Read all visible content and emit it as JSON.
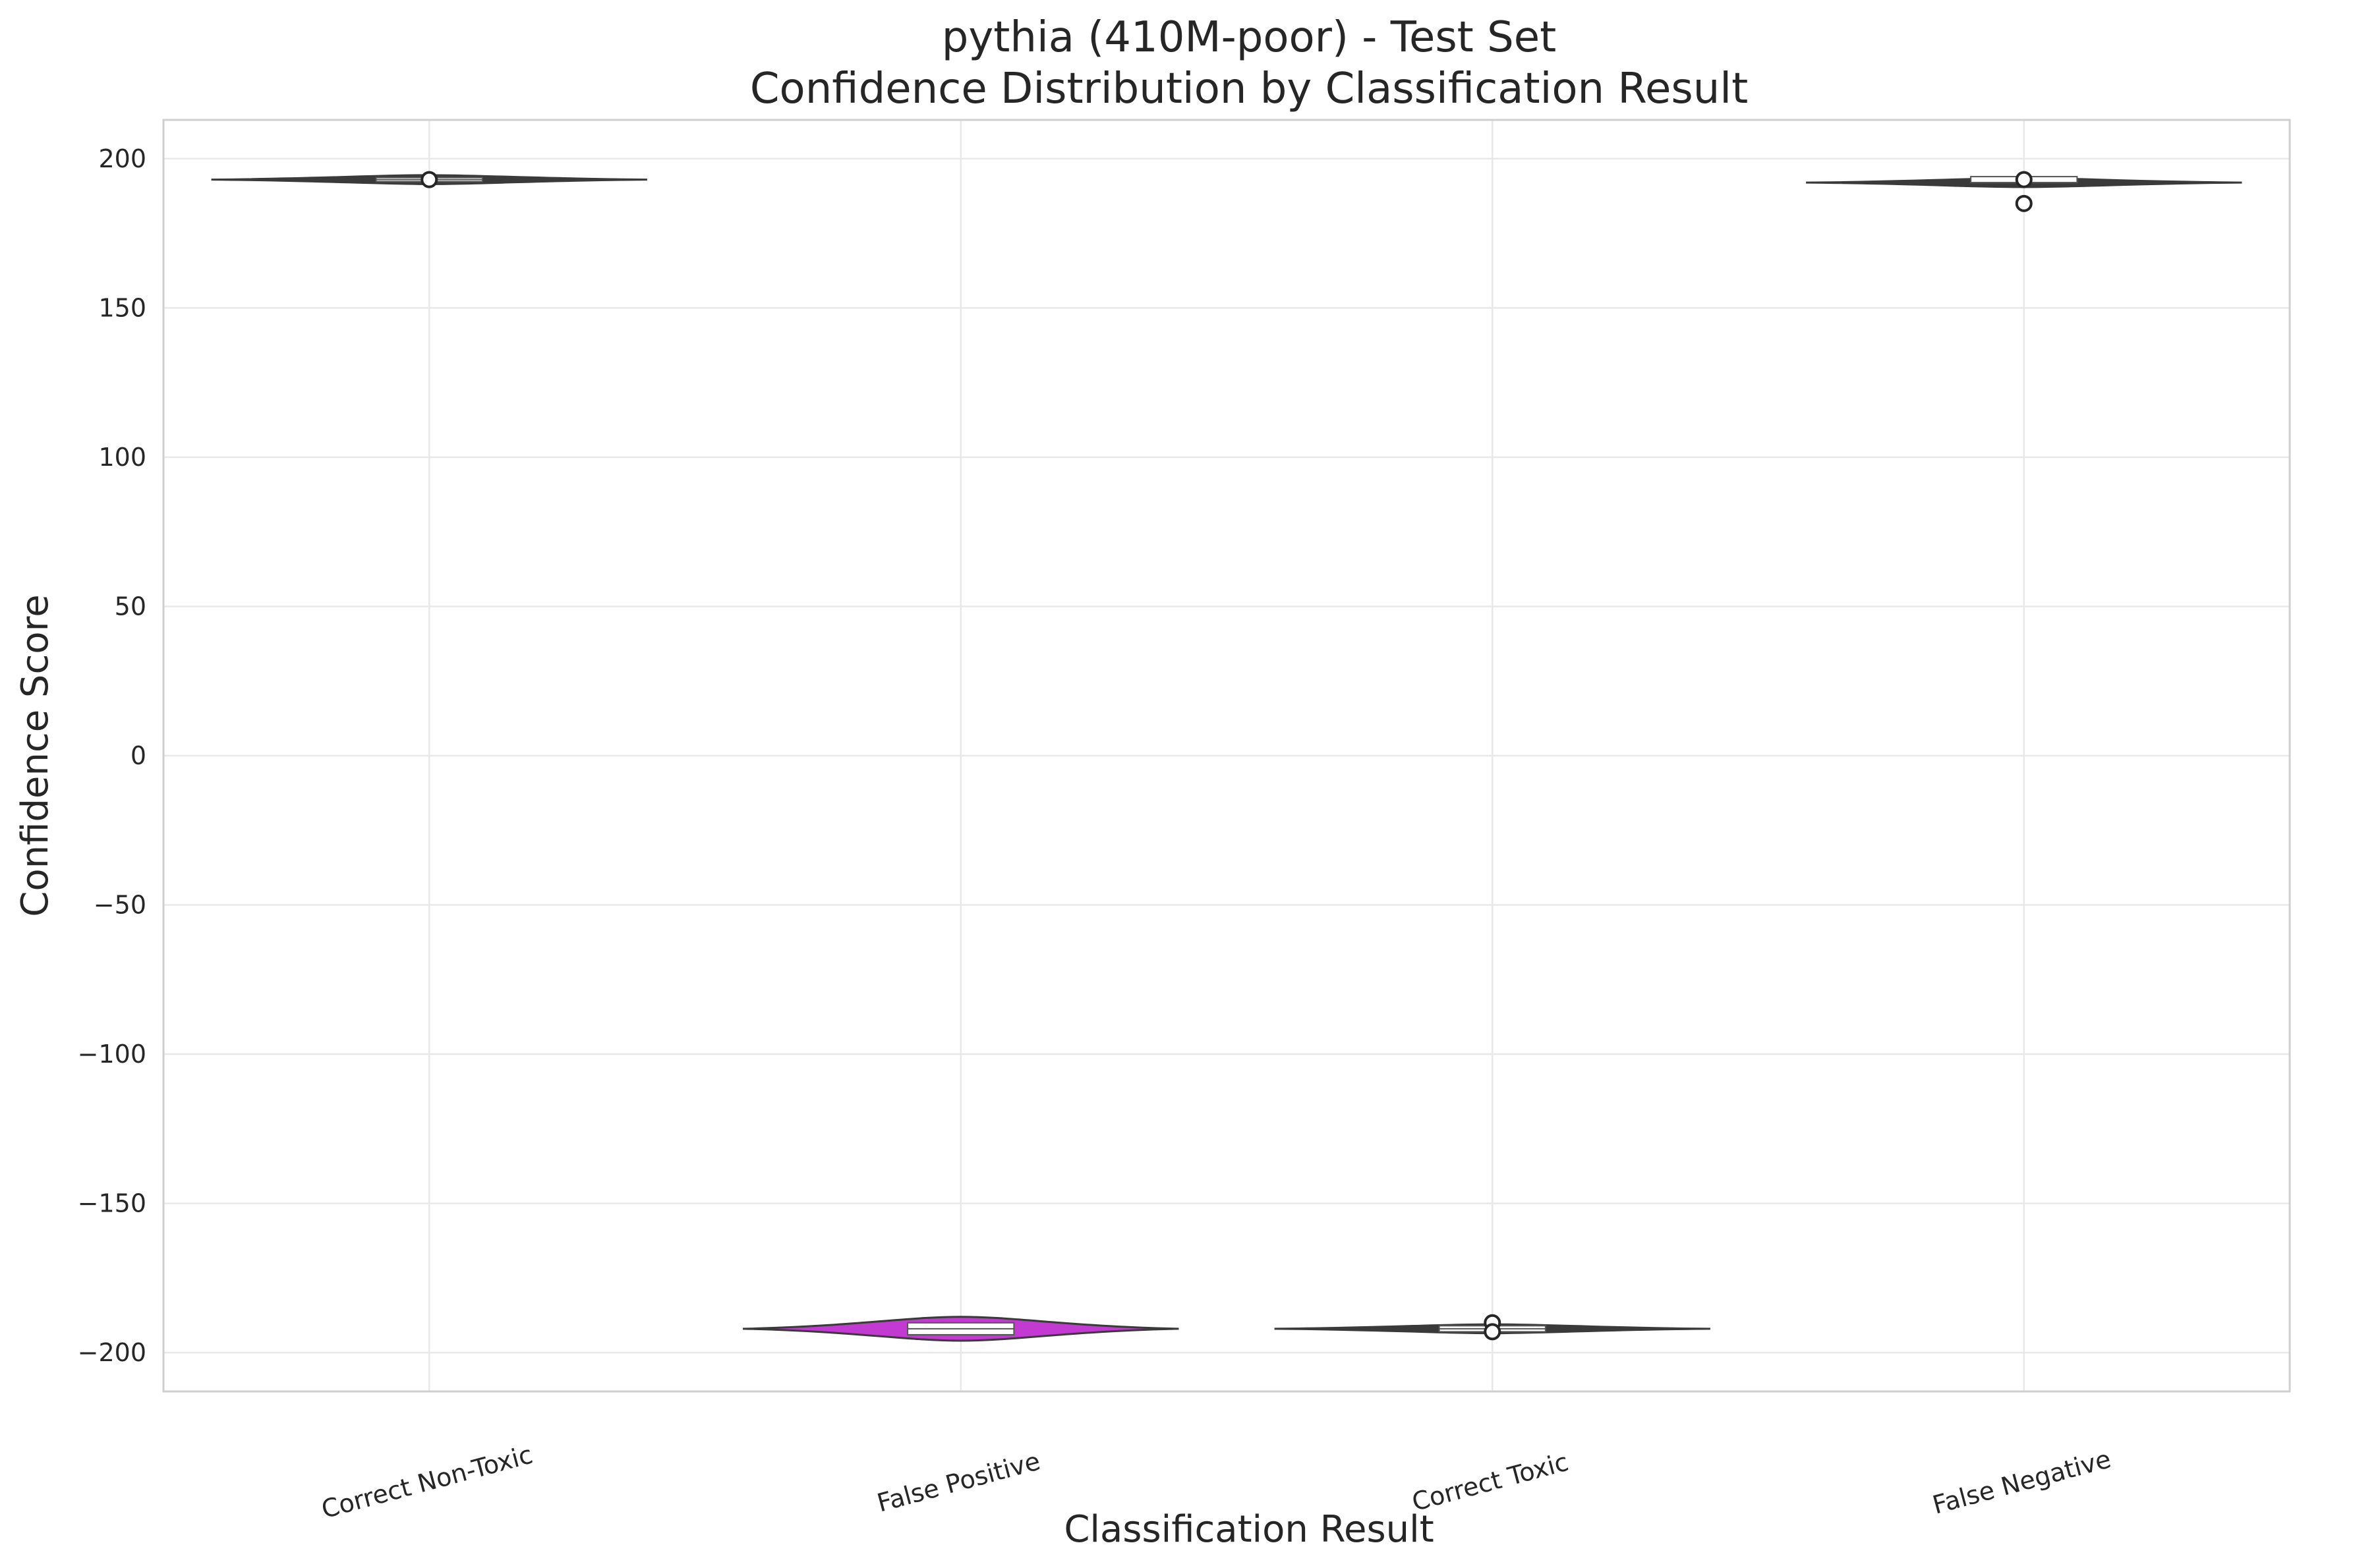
{
  "chart_data": {
    "type": "violin",
    "title": "pythia (410M-poor) - Test Set",
    "subtitle": "Confidence Distribution by Classification Result",
    "xlabel": "Classification Result",
    "ylabel": "Confidence Score",
    "ylim": [
      -213,
      213
    ],
    "yticks": [
      200,
      150,
      100,
      50,
      0,
      -50,
      -100,
      -150,
      -200
    ],
    "ytick_labels": [
      "200",
      "150",
      "100",
      "50",
      "0",
      "−50",
      "−100",
      "−150",
      "−200"
    ],
    "grid": true,
    "categories": [
      "Correct Non-Toxic",
      "False Positive",
      "Correct Toxic",
      "False Negative"
    ],
    "series": [
      {
        "category": "Correct Non-Toxic",
        "median": 193,
        "q1": 193,
        "q3": 193,
        "min": 193,
        "max": 193,
        "outliers": [
          193
        ],
        "fill": "#3a3a3a",
        "spread": 1.5
      },
      {
        "category": "False Positive",
        "median": -192,
        "q1": -194,
        "q3": -190,
        "min": -194,
        "max": -189,
        "outliers": [],
        "fill": "#c23ad1",
        "spread": 4
      },
      {
        "category": "Correct Toxic",
        "median": -192,
        "q1": -193,
        "q3": -191,
        "min": -193,
        "max": -191,
        "outliers": [
          -190,
          -193
        ],
        "fill": "#3a3a3a",
        "spread": 1.5
      },
      {
        "category": "False Negative",
        "median": 192,
        "q1": 192,
        "q3": 194,
        "min": 192,
        "max": 194,
        "outliers": [
          193,
          185
        ],
        "fill": "#3a3a3a",
        "spread": 1.5
      }
    ]
  }
}
